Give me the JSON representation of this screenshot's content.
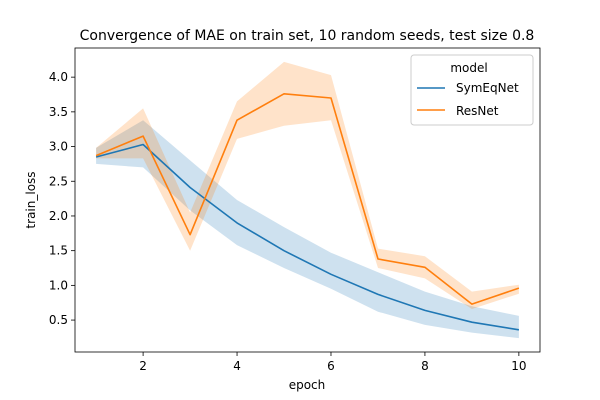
{
  "chart_data": {
    "type": "line",
    "title": "Convergence of MAE on train set, 10 random seeds, test size 0.8",
    "xlabel": "epoch",
    "ylabel": "train_loss",
    "xlim": [
      0.55,
      10.45
    ],
    "ylim": [
      0.04,
      4.42
    ],
    "xticks": [
      2,
      4,
      6,
      8,
      10
    ],
    "yticks": [
      0.5,
      1.0,
      1.5,
      2.0,
      2.5,
      3.0,
      3.5,
      4.0
    ],
    "ytick_labels": [
      "0.5",
      "1.0",
      "1.5",
      "2.0",
      "2.5",
      "3.0",
      "3.5",
      "4.0"
    ],
    "grid": false,
    "legend": {
      "title": "model",
      "placement": "top-right"
    },
    "x": [
      1,
      2,
      3,
      4,
      5,
      6,
      7,
      8,
      9,
      10
    ],
    "series": [
      {
        "name": "SymEqNet",
        "color": "#1f77b4",
        "band_color": "#1f77b4",
        "values": [
          2.85,
          3.03,
          2.41,
          1.9,
          1.5,
          1.16,
          0.87,
          0.64,
          0.47,
          0.36
        ],
        "lower": [
          2.75,
          2.7,
          2.08,
          1.58,
          1.25,
          0.95,
          0.62,
          0.43,
          0.32,
          0.24
        ],
        "upper": [
          2.98,
          3.38,
          2.8,
          2.23,
          1.84,
          1.47,
          1.19,
          0.91,
          0.7,
          0.56
        ]
      },
      {
        "name": "ResNet",
        "color": "#ff7f0e",
        "band_color": "#ff7f0e",
        "values": [
          2.87,
          3.15,
          1.73,
          3.38,
          3.76,
          3.7,
          1.38,
          1.26,
          0.73,
          0.96
        ],
        "lower": [
          2.83,
          2.83,
          1.5,
          3.11,
          3.3,
          3.38,
          1.25,
          1.1,
          0.66,
          0.88
        ],
        "upper": [
          2.98,
          3.55,
          2.05,
          3.65,
          4.22,
          4.03,
          1.53,
          1.42,
          0.91,
          1.01
        ]
      }
    ]
  }
}
